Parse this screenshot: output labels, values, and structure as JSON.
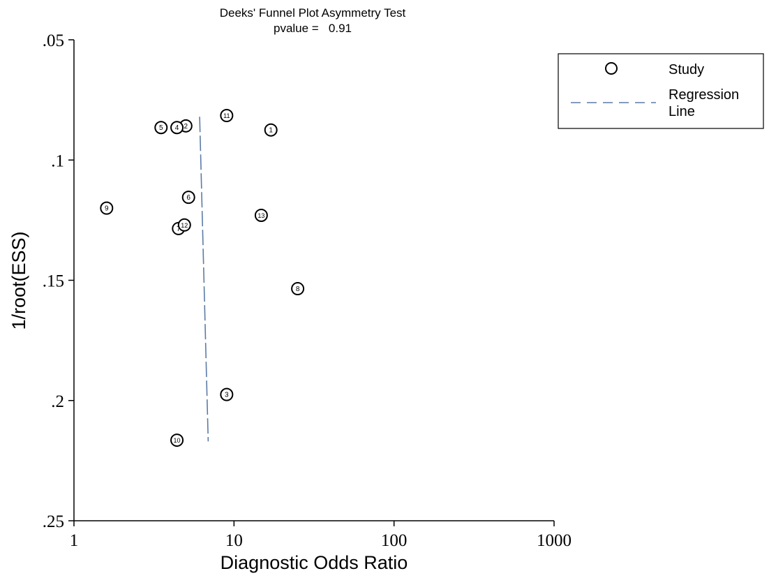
{
  "chart_data": {
    "type": "scatter",
    "title": "Deeks' Funnel Plot Asymmetry Test",
    "subtitle": "pvalue =   0.91",
    "xlabel": "Diagnostic Odds Ratio",
    "ylabel": "1/root(ESS)",
    "x_scale": "log",
    "xlim": [
      1,
      1000
    ],
    "ylim": [
      0.05,
      0.25
    ],
    "y_inverted": true,
    "x_ticks": [
      "1",
      "10",
      "100",
      "1000"
    ],
    "y_ticks": [
      ".05",
      ".1",
      ".15",
      ".2",
      ".25"
    ],
    "grid": false,
    "legend_position": "top-right",
    "legend": [
      {
        "symbol": "circle",
        "label": "Study"
      },
      {
        "symbol": "dashed-line",
        "label": "Regression Line"
      }
    ],
    "series": [
      {
        "name": "Study",
        "points": [
          {
            "label": "1",
            "x": 17.0,
            "y": 0.0875
          },
          {
            "label": "2",
            "x": 5.0,
            "y": 0.0858
          },
          {
            "label": "3",
            "x": 9.0,
            "y": 0.1975
          },
          {
            "label": "4",
            "x": 4.4,
            "y": 0.0865
          },
          {
            "label": "5",
            "x": 3.5,
            "y": 0.0865
          },
          {
            "label": "6",
            "x": 5.2,
            "y": 0.1155
          },
          {
            "label": "7",
            "x": 4.5,
            "y": 0.1285
          },
          {
            "label": "8",
            "x": 25.0,
            "y": 0.1535
          },
          {
            "label": "9",
            "x": 1.6,
            "y": 0.12
          },
          {
            "label": "10",
            "x": 4.4,
            "y": 0.2165
          },
          {
            "label": "11",
            "x": 9.0,
            "y": 0.0815
          },
          {
            "label": "12",
            "x": 4.9,
            "y": 0.127
          },
          {
            "label": "13",
            "x": 14.8,
            "y": 0.123
          }
        ]
      },
      {
        "name": "Regression Line",
        "points": [
          {
            "x": 6.1,
            "y": 0.082
          },
          {
            "x": 6.9,
            "y": 0.217
          }
        ]
      }
    ],
    "colors": {
      "axis": "#000000",
      "marker": "#000000",
      "regression": "#5b7ba6"
    }
  }
}
